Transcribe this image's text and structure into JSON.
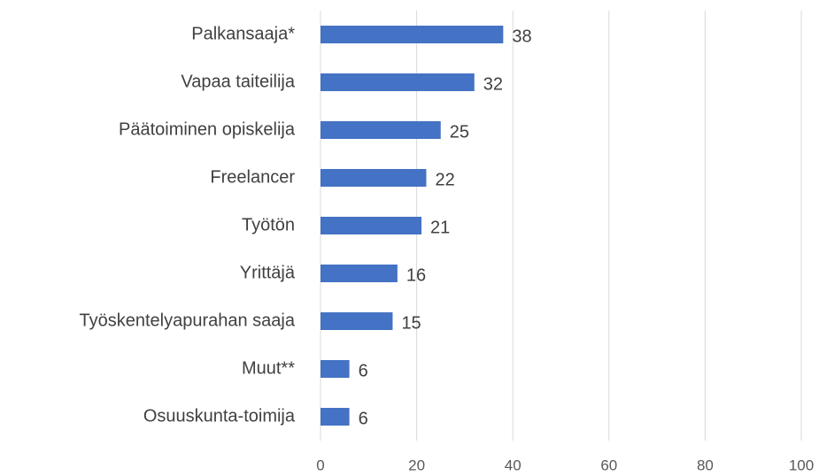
{
  "chart_data": {
    "type": "bar",
    "orientation": "horizontal",
    "categories": [
      "Palkansaaja*",
      "Vapaa taiteilija",
      "Päätoiminen opiskelija",
      "Freelancer",
      "Työtön",
      "Yrittäjä",
      "Työskentelyapurahan saaja",
      "Muut**",
      "Osuuskunta-toimija"
    ],
    "values": [
      38,
      32,
      25,
      22,
      21,
      16,
      15,
      6,
      6
    ],
    "color": "#4472c4",
    "xlim": [
      0,
      100
    ],
    "xticks": [
      0,
      20,
      40,
      60,
      80,
      100
    ],
    "grid": true
  }
}
